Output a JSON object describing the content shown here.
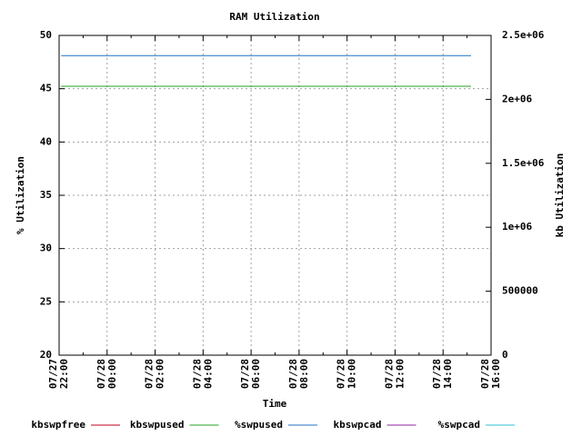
{
  "chart_data": {
    "type": "line",
    "title": "RAM Utilization",
    "xlabel": "Time",
    "ylabel": "% Utilization",
    "y2label": "kb Utilization",
    "x": [
      "07/27 22:05",
      "07/28 15:10"
    ],
    "xlim": [
      "07/27 22:00",
      "07/28 16:00"
    ],
    "xticks": [
      "07/27 22:00",
      "07/28 00:00",
      "07/28 02:00",
      "07/28 04:00",
      "07/28 06:00",
      "07/28 08:00",
      "07/28 10:00",
      "07/28 12:00",
      "07/28 14:00",
      "07/28 16:00"
    ],
    "ylim": [
      20,
      50
    ],
    "yticks": [
      20,
      25,
      30,
      35,
      40,
      45,
      50
    ],
    "y2lim": [
      0,
      2500000
    ],
    "y2ticks": [
      0,
      500000,
      {
        "value": 1000000,
        "label": "1e+06"
      },
      {
        "value": 1500000,
        "label": "1.5e+06"
      },
      {
        "value": 2000000,
        "label": "2e+06"
      },
      {
        "value": 2500000,
        "label": "2.5e+06"
      }
    ],
    "grid": true,
    "legend": "bottom",
    "series": [
      {
        "name": "kbswpfree",
        "color": "#c00020",
        "axis": "y2",
        "values": [
          null,
          null
        ]
      },
      {
        "name": "kbswpused",
        "color": "#20a020",
        "axis": "y2",
        "values": [
          2102000,
          2102000
        ]
      },
      {
        "name": "%swpused",
        "color": "#2070c0",
        "values": [
          48.1,
          48.1
        ]
      },
      {
        "name": "kbswpcad",
        "color": "#9020a0",
        "axis": "y2",
        "values": [
          null,
          null
        ]
      },
      {
        "name": "%swpcad",
        "color": "#30c0d0",
        "values": [
          null,
          null
        ]
      }
    ]
  }
}
